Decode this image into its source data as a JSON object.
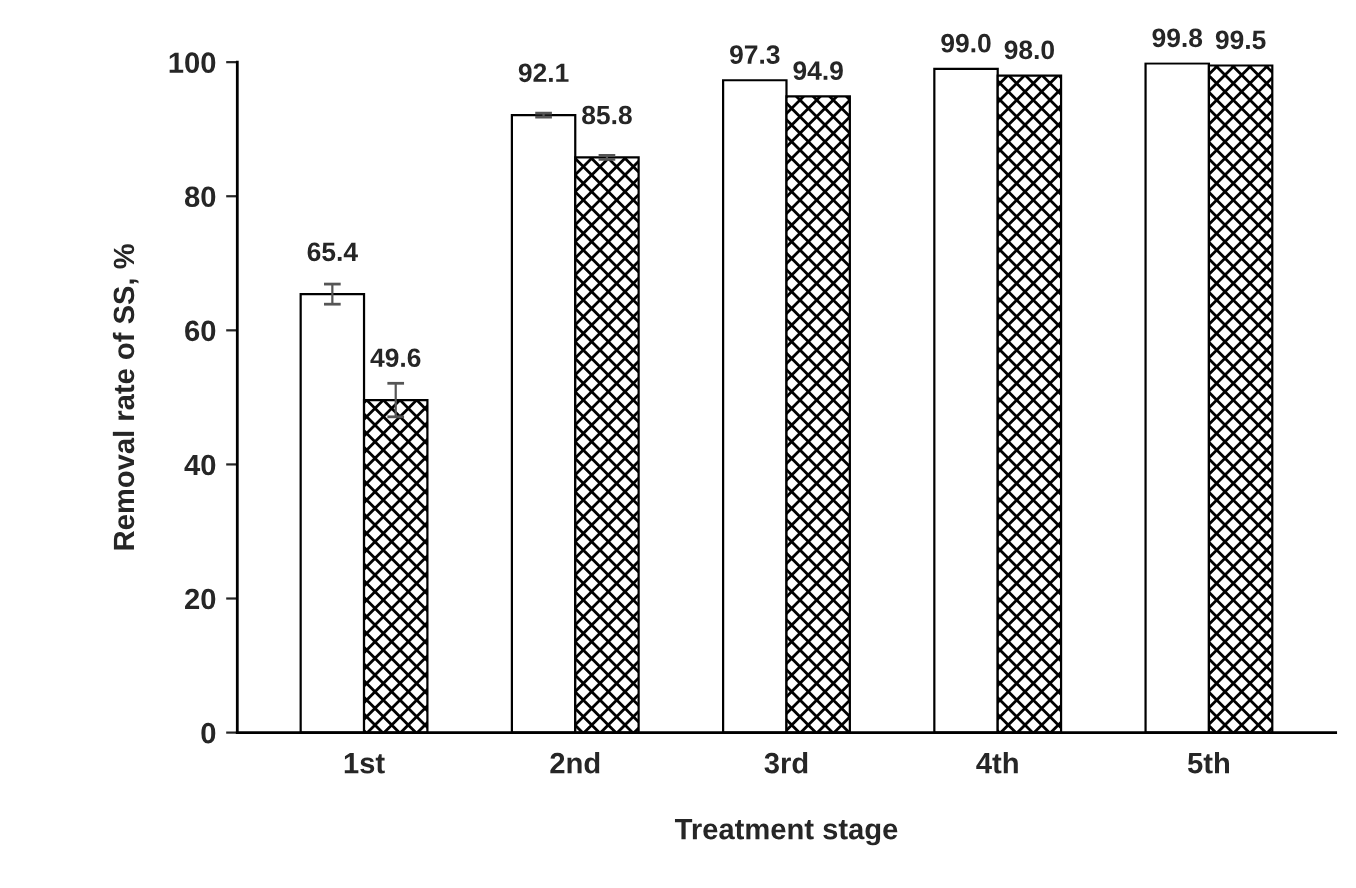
{
  "chart_data": {
    "type": "bar",
    "xlabel": "Treatment stage",
    "ylabel": "Removal rate of SS, %",
    "categories": [
      "1st",
      "2nd",
      "3rd",
      "4th",
      "5th"
    ],
    "series": [
      {
        "color": "#ffffff",
        "values": [
          65.4,
          92.1,
          97.3,
          99.0,
          99.8
        ],
        "errors": [
          1.5,
          0.3,
          null,
          null,
          null
        ],
        "value_labels": [
          "65.4",
          "92.1",
          "97.3",
          "99.0",
          "99.8"
        ]
      },
      {
        "color": "#000000",
        "values": [
          49.6,
          85.8,
          94.9,
          98.0,
          99.5
        ],
        "errors": [
          2.5,
          0.3,
          null,
          null,
          null
        ],
        "value_labels": [
          "49.6",
          "85.8",
          "94.9",
          "98.0",
          "99.5"
        ]
      }
    ],
    "ylim": [
      0,
      100
    ],
    "yticks": [
      0,
      20,
      40,
      60,
      80,
      100
    ],
    "grid": false,
    "legend": false
  }
}
